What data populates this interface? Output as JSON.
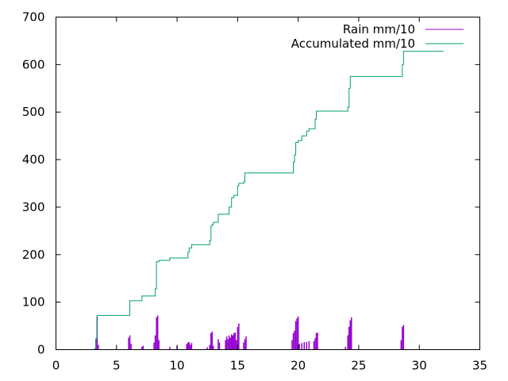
{
  "chart_data": {
    "type": "line",
    "title": "",
    "xlabel": "",
    "ylabel": "",
    "xlim": [
      0,
      35
    ],
    "ylim": [
      0,
      700
    ],
    "xticks": [
      0,
      5,
      10,
      15,
      20,
      25,
      30,
      35
    ],
    "yticks": [
      0,
      100,
      200,
      300,
      400,
      500,
      600,
      700
    ],
    "grid": false,
    "legend_position": "top-right",
    "series": [
      {
        "name": "Rain mm/10",
        "color": "#9400d3",
        "style": "impulses",
        "x": [
          3.3,
          3.4,
          3.5,
          6.0,
          6.1,
          6.2,
          7.1,
          7.2,
          8.1,
          8.2,
          8.3,
          8.4,
          8.5,
          9.4,
          10.0,
          10.8,
          10.9,
          11.0,
          11.1,
          11.2,
          12.5,
          12.7,
          12.8,
          12.9,
          13.0,
          13.4,
          13.5,
          14.0,
          14.1,
          14.2,
          14.3,
          14.4,
          14.5,
          14.6,
          14.7,
          14.8,
          14.9,
          15.0,
          15.1,
          15.5,
          15.6,
          15.7,
          19.5,
          19.6,
          19.7,
          19.8,
          19.9,
          20.0,
          20.1,
          20.3,
          20.5,
          20.7,
          20.9,
          21.3,
          21.4,
          21.5,
          21.6,
          23.9,
          24.1,
          24.2,
          24.3,
          24.4,
          28.5,
          28.6,
          28.7
        ],
        "y": [
          22,
          70,
          10,
          25,
          30,
          12,
          6,
          8,
          15,
          30,
          68,
          72,
          20,
          6,
          8,
          12,
          15,
          16,
          10,
          14,
          5,
          10,
          35,
          38,
          8,
          22,
          15,
          20,
          28,
          22,
          30,
          25,
          32,
          30,
          35,
          36,
          20,
          48,
          55,
          15,
          22,
          28,
          20,
          35,
          40,
          60,
          66,
          70,
          12,
          14,
          16,
          16,
          18,
          18,
          24,
          35,
          36,
          6,
          30,
          48,
          62,
          68,
          20,
          48,
          52
        ]
      },
      {
        "name": "Accumulated mm/10",
        "color": "#009e73",
        "style": "steps",
        "x": [
          1.7,
          3.2,
          3.3,
          3.4,
          6.0,
          6.1,
          7.0,
          7.1,
          8.1,
          8.2,
          8.3,
          8.5,
          9.4,
          10.8,
          10.9,
          11.0,
          11.2,
          12.5,
          12.7,
          12.8,
          12.9,
          13.0,
          13.4,
          14.0,
          14.3,
          14.5,
          14.7,
          15.0,
          15.1,
          15.5,
          15.6,
          19.5,
          19.6,
          19.7,
          19.8,
          20.0,
          20.3,
          20.7,
          20.9,
          21.3,
          21.4,
          21.5,
          23.9,
          24.1,
          24.2,
          24.3,
          28.5,
          28.6,
          28.7,
          32.0
        ],
        "y": [
          0,
          2,
          24,
          72,
          72,
          103,
          103,
          113,
          113,
          128,
          185,
          188,
          193,
          193,
          205,
          214,
          221,
          221,
          230,
          260,
          264,
          268,
          285,
          285,
          300,
          320,
          325,
          345,
          350,
          353,
          372,
          372,
          395,
          410,
          436,
          440,
          450,
          460,
          465,
          465,
          485,
          502,
          502,
          510,
          550,
          575,
          575,
          600,
          628,
          628
        ]
      }
    ]
  }
}
